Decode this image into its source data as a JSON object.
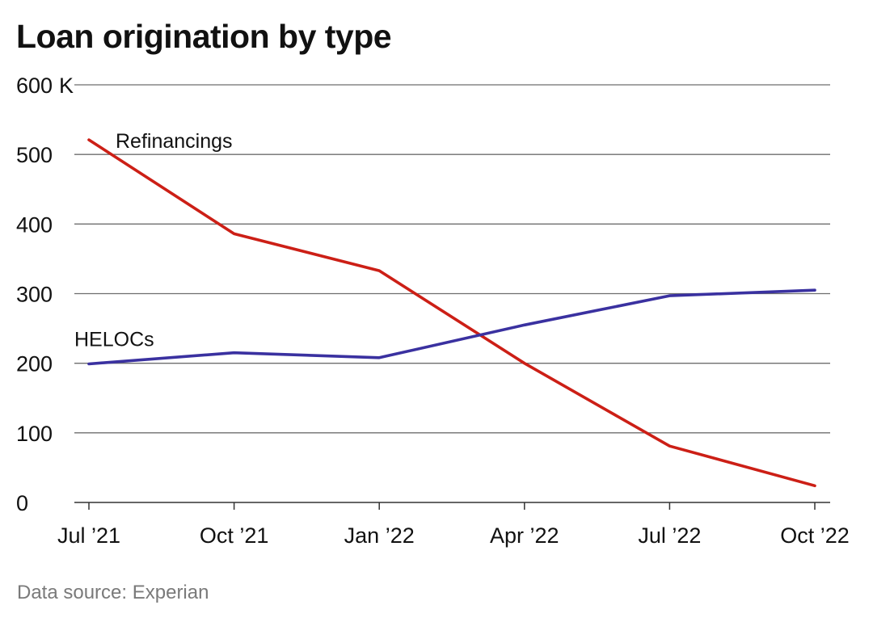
{
  "chart_data": {
    "type": "line",
    "title": "Loan origination by type",
    "source": "Data source: Experian",
    "x": [
      "Jul ’21",
      "Oct ’21",
      "Jan ’22",
      "Apr ’22",
      "Jul ’22",
      "Oct ’22"
    ],
    "x_ticks": [
      "Jul ’21",
      "Oct ’21",
      "Jan ’22",
      "Apr ’22",
      "Jul ’22",
      "Oct ’22"
    ],
    "y_ticks": [
      "0",
      "100",
      "200",
      "300",
      "400",
      "500",
      "600"
    ],
    "y_unit_suffix": "K",
    "ylim": [
      0,
      600
    ],
    "grid": true,
    "series": [
      {
        "name": "Refinancings",
        "color": "#cc1f16",
        "points": [
          {
            "x": "Jul ’21",
            "y": 521
          },
          {
            "x": "Oct ’21",
            "y": 386
          },
          {
            "x": "Jan ’22",
            "y": 333
          },
          {
            "x": "Apr ’22",
            "y": 200
          },
          {
            "x": "Jul ’22",
            "y": 81
          },
          {
            "x": "Oct ’22",
            "y": 24
          }
        ]
      },
      {
        "name": "HELOCs",
        "color": "#3a31a0",
        "points": [
          {
            "x": "Jul ’21",
            "y": 199
          },
          {
            "x": "Oct ’21",
            "y": 215
          },
          {
            "x": "Jan ’22",
            "y": 208
          },
          {
            "x": "Apr ’22",
            "y": 255
          },
          {
            "x": "Jul ’22",
            "y": 297
          },
          {
            "x": "Oct ’22",
            "y": 305
          }
        ]
      }
    ]
  }
}
